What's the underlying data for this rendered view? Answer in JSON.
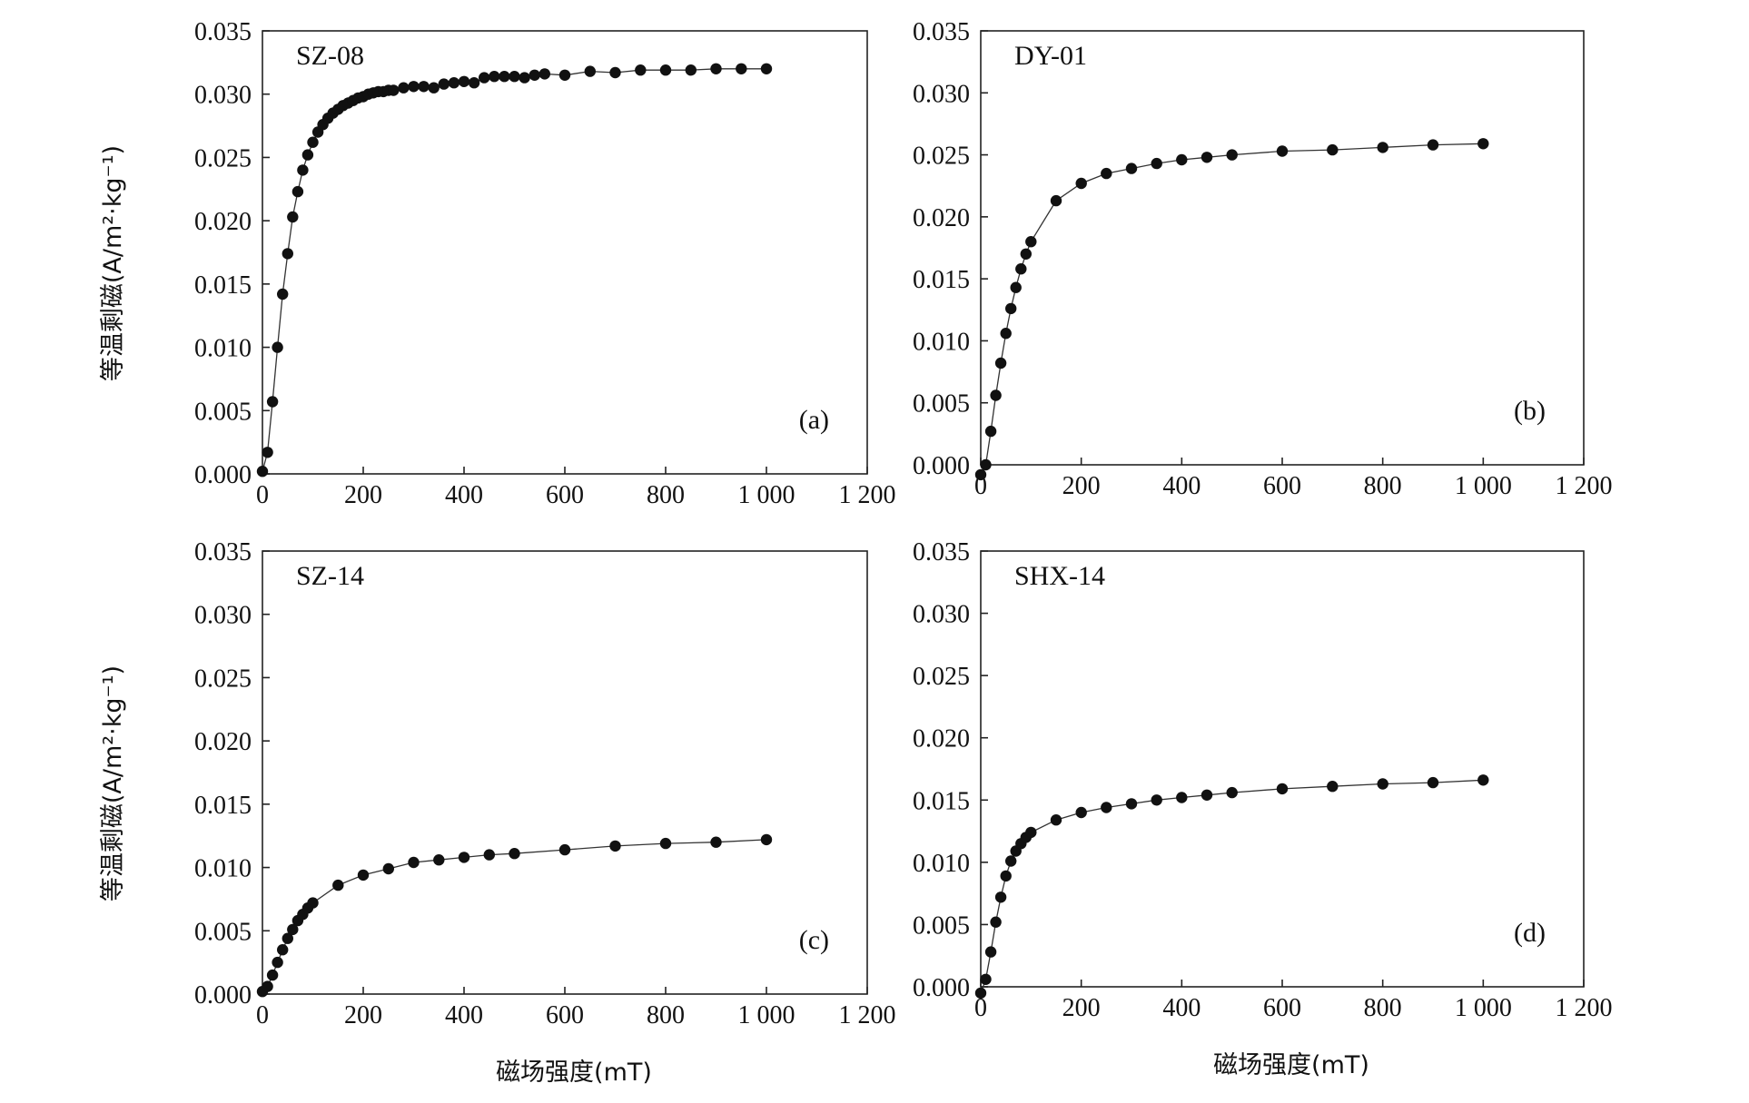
{
  "chart_data": [
    {
      "panel": "a",
      "type": "scatter",
      "title": "SZ-08",
      "tag": "(a)",
      "xlabel": "",
      "ylabel": "等温剩磁(A/m²·kg⁻¹)",
      "xlim": [
        0,
        1200
      ],
      "ylim": [
        0,
        0.035
      ],
      "x_ticks": [
        "0",
        "200",
        "400",
        "600",
        "800",
        "1 000",
        "1 200"
      ],
      "y_ticks": [
        "0.000",
        "0.005",
        "0.010",
        "0.015",
        "0.020",
        "0.025",
        "0.030",
        "0.035"
      ],
      "series": [
        {
          "marker": "filled-circle",
          "x": [
            0,
            10,
            20,
            30,
            40,
            50,
            60,
            70,
            80,
            90,
            100,
            110,
            120,
            130,
            140,
            150,
            160,
            170,
            180,
            190,
            200,
            210,
            220,
            230,
            240,
            250,
            260,
            280,
            300,
            320,
            340,
            360,
            380,
            400,
            420,
            440,
            460,
            480,
            500,
            520,
            540,
            560,
            600,
            650,
            700,
            750,
            800,
            850,
            900,
            950,
            1000
          ],
          "y": [
            0.0002,
            0.0017,
            0.0057,
            0.01,
            0.0142,
            0.0174,
            0.0203,
            0.0223,
            0.024,
            0.0252,
            0.0262,
            0.027,
            0.0276,
            0.0281,
            0.0285,
            0.0288,
            0.0291,
            0.0293,
            0.0295,
            0.0297,
            0.0298,
            0.03,
            0.0301,
            0.0302,
            0.0302,
            0.0303,
            0.0303,
            0.0305,
            0.0306,
            0.0306,
            0.0305,
            0.0308,
            0.0309,
            0.031,
            0.0309,
            0.0313,
            0.0314,
            0.0314,
            0.0314,
            0.0313,
            0.0315,
            0.0316,
            0.0315,
            0.0318,
            0.0317,
            0.0319,
            0.0319,
            0.0319,
            0.032,
            0.032,
            0.032
          ]
        }
      ]
    },
    {
      "panel": "b",
      "type": "scatter",
      "title": "DY-01",
      "tag": "(b)",
      "xlabel": "",
      "ylabel": "",
      "xlim": [
        0,
        1200
      ],
      "ylim": [
        0,
        0.035
      ],
      "x_ticks": [
        "0",
        "200",
        "400",
        "600",
        "800",
        "1 000",
        "1 200"
      ],
      "y_ticks": [
        "0.000",
        "0.005",
        "0.010",
        "0.015",
        "0.020",
        "0.025",
        "0.030",
        "0.035"
      ],
      "series": [
        {
          "marker": "filled-circle",
          "x": [
            0,
            10,
            20,
            30,
            40,
            50,
            60,
            70,
            80,
            90,
            100,
            150,
            200,
            250,
            300,
            350,
            400,
            450,
            500,
            600,
            700,
            800,
            900,
            1000
          ],
          "y": [
            -0.0008,
            0.0,
            0.0027,
            0.0056,
            0.0082,
            0.0106,
            0.0126,
            0.0143,
            0.0158,
            0.017,
            0.018,
            0.0213,
            0.0227,
            0.0235,
            0.0239,
            0.0243,
            0.0246,
            0.0248,
            0.025,
            0.0253,
            0.0254,
            0.0256,
            0.0258,
            0.0259
          ]
        }
      ]
    },
    {
      "panel": "c",
      "type": "scatter",
      "title": "SZ-14",
      "tag": "(c)",
      "xlabel": "磁场强度(mT)",
      "ylabel": "等温剩磁(A/m²·kg⁻¹)",
      "xlim": [
        0,
        1200
      ],
      "ylim": [
        0,
        0.035
      ],
      "x_ticks": [
        "0",
        "200",
        "400",
        "600",
        "800",
        "1 000",
        "1 200"
      ],
      "y_ticks": [
        "0.000",
        "0.005",
        "0.010",
        "0.015",
        "0.020",
        "0.025",
        "0.030",
        "0.035"
      ],
      "series": [
        {
          "marker": "filled-circle",
          "x": [
            0,
            10,
            20,
            30,
            40,
            50,
            60,
            70,
            80,
            90,
            100,
            150,
            200,
            250,
            300,
            350,
            400,
            450,
            500,
            600,
            700,
            800,
            900,
            1000
          ],
          "y": [
            0.0002,
            0.0006,
            0.0015,
            0.0025,
            0.0035,
            0.0044,
            0.0051,
            0.0058,
            0.0063,
            0.0068,
            0.0072,
            0.0086,
            0.0094,
            0.0099,
            0.0104,
            0.0106,
            0.0108,
            0.011,
            0.0111,
            0.0114,
            0.0117,
            0.0119,
            0.012,
            0.0122
          ]
        }
      ]
    },
    {
      "panel": "d",
      "type": "scatter",
      "title": "SHX-14",
      "tag": "(d)",
      "xlabel": "磁场强度(mT)",
      "ylabel": "",
      "xlim": [
        0,
        1200
      ],
      "ylim": [
        0,
        0.035
      ],
      "x_ticks": [
        "0",
        "200",
        "400",
        "600",
        "800",
        "1 000",
        "1 200"
      ],
      "y_ticks": [
        "0.000",
        "0.005",
        "0.010",
        "0.015",
        "0.020",
        "0.025",
        "0.030",
        "0.035"
      ],
      "series": [
        {
          "marker": "filled-circle",
          "x": [
            0,
            10,
            20,
            30,
            40,
            50,
            60,
            70,
            80,
            90,
            100,
            150,
            200,
            250,
            300,
            350,
            400,
            450,
            500,
            600,
            700,
            800,
            900,
            1000
          ],
          "y": [
            -0.0005,
            0.0006,
            0.0028,
            0.0052,
            0.0072,
            0.0089,
            0.0101,
            0.0109,
            0.0115,
            0.012,
            0.0124,
            0.0134,
            0.014,
            0.0144,
            0.0147,
            0.015,
            0.0152,
            0.0154,
            0.0156,
            0.0159,
            0.0161,
            0.0163,
            0.0164,
            0.0166
          ]
        }
      ]
    }
  ]
}
